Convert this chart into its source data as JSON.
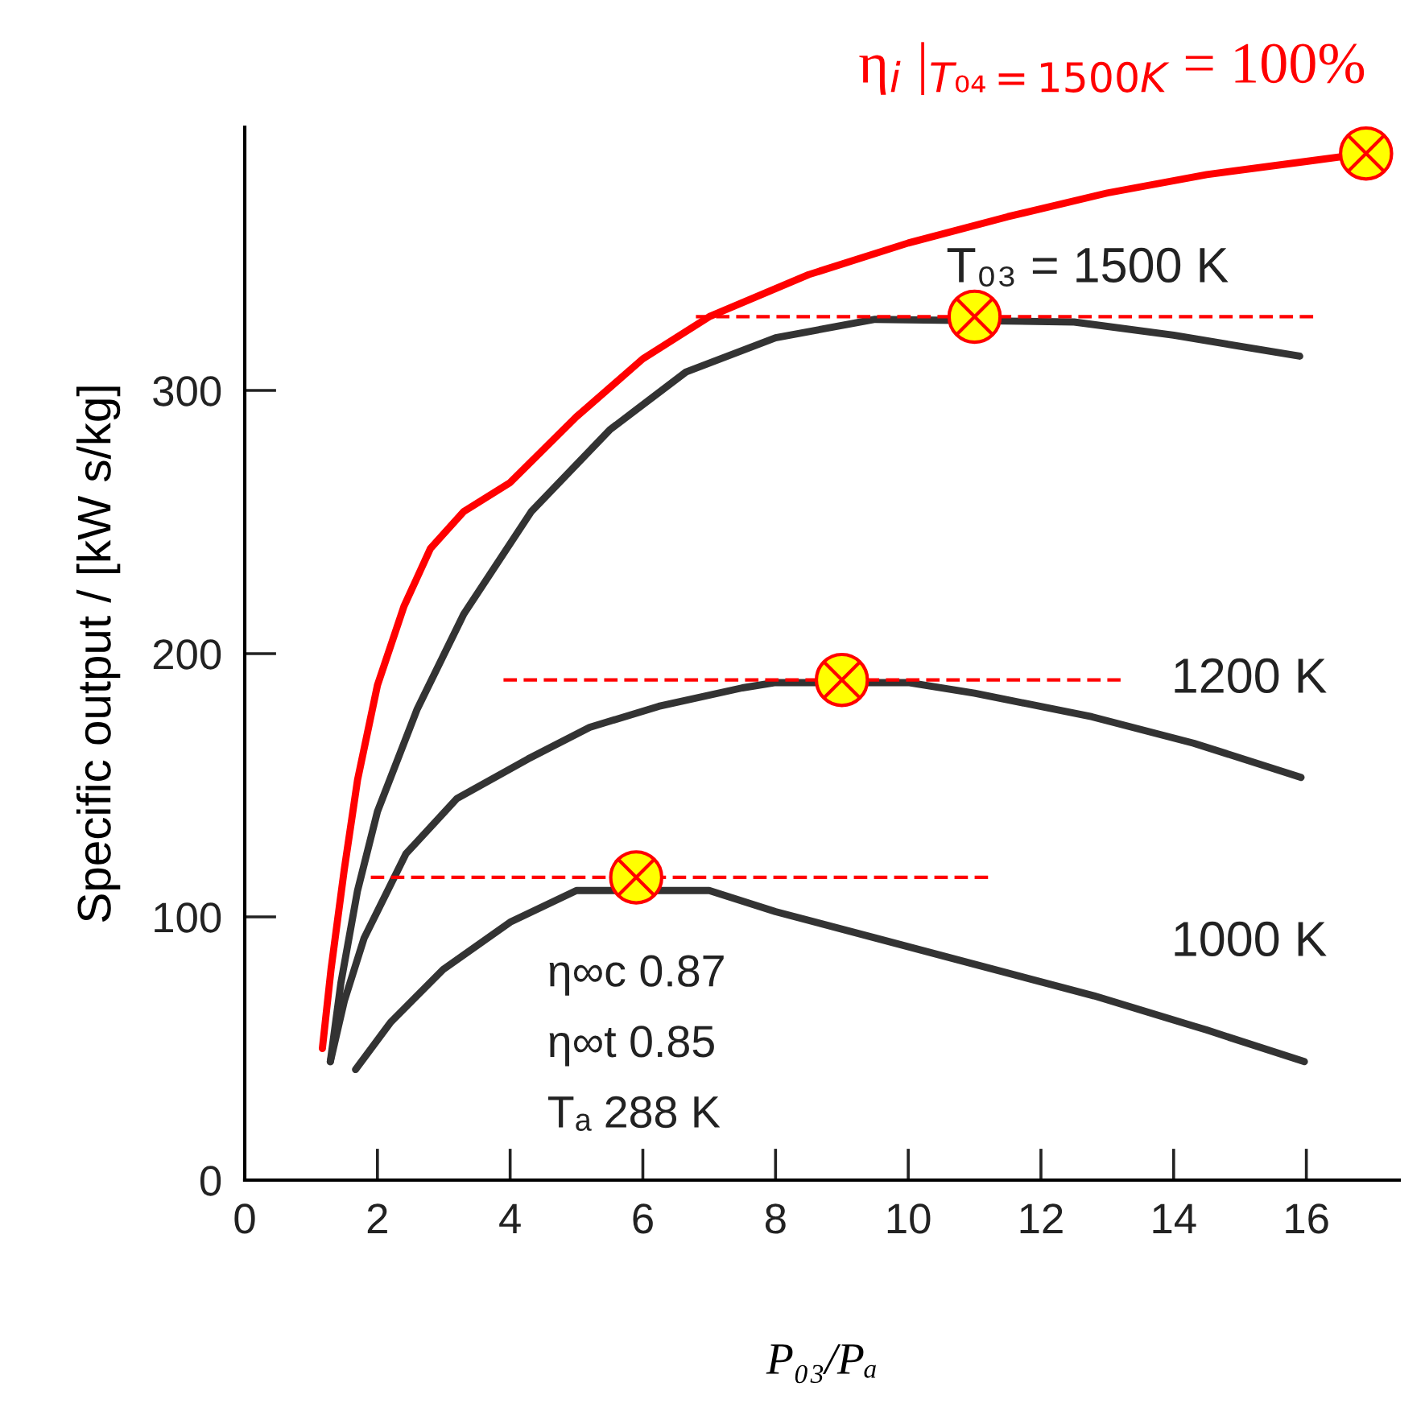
{
  "chart_data": {
    "type": "line",
    "xlabel": "P₀₃/Pₐ",
    "ylabel": "Specific output / [kW s/kg]",
    "xlim": [
      0,
      17.4
    ],
    "ylim": [
      0,
      400
    ],
    "xticks": [
      0,
      2,
      4,
      6,
      8,
      10,
      12,
      14,
      16
    ],
    "yticks": [
      0,
      100,
      200,
      300
    ],
    "grid": false,
    "series": [
      {
        "name": "η$_{i}$ |$_{T₀₄=1500K}$ = 100%",
        "color": "#ff0000",
        "x": [
          1.17,
          1.3,
          1.5,
          1.7,
          2.0,
          2.4,
          2.8,
          3.3,
          4.0,
          5.0,
          6.0,
          7.0,
          8.5,
          10,
          11.5,
          13,
          14.5,
          16,
          16.9
        ],
        "values": [
          50,
          80,
          118,
          152,
          188,
          218,
          240,
          254,
          265,
          290,
          312,
          328,
          344,
          356,
          366,
          375,
          382,
          387,
          390
        ]
      },
      {
        "color": "#333333",
        "x": [
          1.29,
          1.45,
          1.7,
          2.0,
          2.6,
          3.3,
          4.32,
          5.5,
          6.65,
          8.0,
          9.5,
          12.5,
          14,
          15.9
        ],
        "values": [
          45,
          75,
          110,
          140,
          179,
          215,
          254,
          285,
          307,
          320,
          327,
          326,
          321,
          313
        ]
      },
      {
        "color": "#333333",
        "x": [
          1.29,
          1.5,
          1.8,
          2.43,
          3.2,
          4.27,
          5.2,
          6.24,
          7.5,
          8.0,
          10.0,
          11.0,
          12.77,
          14.3,
          15.92
        ],
        "values": [
          45,
          68,
          92,
          124,
          145,
          160,
          172,
          180,
          187,
          189,
          189,
          185,
          176,
          166,
          153
        ]
      },
      {
        "color": "#333333",
        "x": [
          1.67,
          2.2,
          2.99,
          4.0,
          5.0,
          7.0,
          8.0,
          9.5,
          11,
          12.8,
          14.5,
          15.97
        ],
        "values": [
          42,
          60,
          80,
          98,
          110,
          110,
          102,
          92,
          82,
          70,
          57,
          45
        ]
      },
      {
        "type": "line",
        "line_style": "dashed",
        "color": "#ff0000",
        "x": [
          6.8,
          16.2
        ],
        "values": [
          328,
          328
        ]
      },
      {
        "type": "line",
        "line_style": "dashed",
        "color": "#ff0000",
        "x": [
          3.9,
          13.2
        ],
        "values": [
          190,
          190
        ]
      },
      {
        "type": "line",
        "line_style": "dashed",
        "color": "#ff0000",
        "x": [
          1.9,
          11.3
        ],
        "values": [
          115,
          115
        ]
      },
      {
        "type": "scatter",
        "marker": "circle",
        "color": "#ffff00",
        "x": [
          16.9,
          11.0,
          9.0,
          5.9
        ],
        "values": [
          390,
          328,
          190,
          115
        ]
      }
    ],
    "annotations": [
      "T₀₃ = 1500 K",
      "1200 K",
      "1000 K",
      "η∞c 0.87",
      "η∞t 0.85",
      "Tₐ 288 K"
    ]
  }
}
